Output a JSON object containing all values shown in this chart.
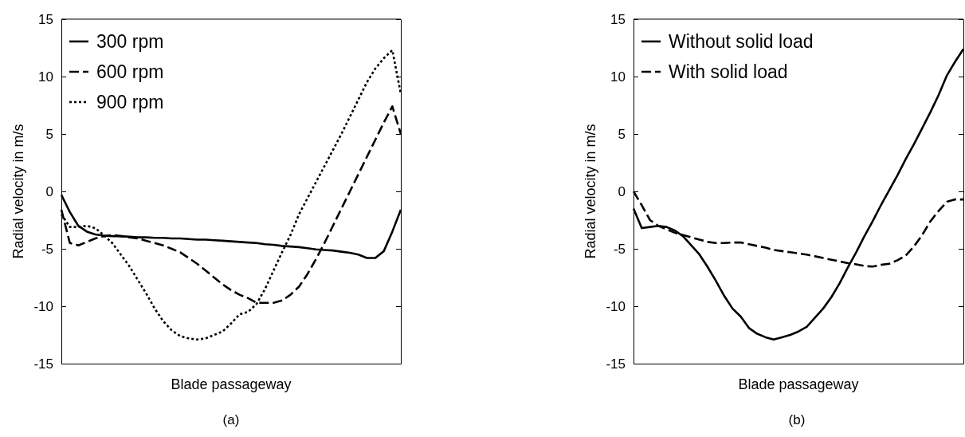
{
  "chart_data": [
    {
      "type": "line",
      "xlabel": "Blade passageway",
      "ylabel": "Radial velocity in m/s",
      "ylim": [
        -15,
        15
      ],
      "yticks": [
        -15,
        -10,
        -5,
        0,
        5,
        10,
        15
      ],
      "tick_labels": "y",
      "grid": false,
      "legend": "top left",
      "annotations": [
        "(a)"
      ],
      "categories": [
        null,
        null,
        null,
        null,
        null,
        null,
        null,
        null,
        null,
        null,
        null,
        null,
        null,
        null,
        null,
        null,
        null,
        null,
        null,
        null,
        null,
        null,
        null,
        null,
        null,
        null,
        null,
        null,
        null,
        null,
        null,
        null,
        null,
        null,
        null,
        null,
        null,
        null,
        null,
        null,
        null
      ],
      "series": [
        {
          "name": "300 rpm",
          "color": "#000000",
          "line_style": "solid",
          "values": [
            -0.3,
            -1.8,
            -3.0,
            -3.5,
            -3.75,
            -3.85,
            -3.9,
            -3.9,
            -3.95,
            -4.0,
            -4.0,
            -4.05,
            -4.05,
            -4.1,
            -4.1,
            -4.15,
            -4.2,
            -4.2,
            -4.25,
            -4.3,
            -4.35,
            -4.4,
            -4.45,
            -4.5,
            -4.6,
            -4.65,
            -4.75,
            -4.8,
            -4.85,
            -4.95,
            -5.05,
            -5.1,
            -5.15,
            -5.25,
            -5.35,
            -5.5,
            -5.8,
            -5.8,
            -5.2,
            -3.5,
            -1.6
          ]
        },
        {
          "name": "600 rpm",
          "color": "#000000",
          "line_style": "dashed",
          "values": [
            -1.6,
            -4.5,
            -4.7,
            -4.4,
            -4.1,
            -3.9,
            -3.8,
            -3.9,
            -4.0,
            -4.1,
            -4.3,
            -4.5,
            -4.7,
            -5.0,
            -5.3,
            -5.8,
            -6.3,
            -6.9,
            -7.5,
            -8.1,
            -8.6,
            -9.0,
            -9.3,
            -9.7,
            -9.7,
            -9.7,
            -9.5,
            -9.0,
            -8.3,
            -7.2,
            -5.9,
            -4.5,
            -3.0,
            -1.5,
            0,
            1.5,
            3.0,
            4.5,
            6.0,
            7.4,
            5.0
          ]
        },
        {
          "name": "900 rpm",
          "color": "#000000",
          "line_style": "dotted",
          "values": [
            -2.0,
            -3.1,
            -3.1,
            -3.0,
            -3.2,
            -3.8,
            -4.5,
            -5.5,
            -6.5,
            -7.7,
            -8.9,
            -10.2,
            -11.3,
            -12.1,
            -12.6,
            -12.8,
            -12.9,
            -12.8,
            -12.5,
            -12.2,
            -11.5,
            -10.7,
            -10.5,
            -9.8,
            -8.5,
            -6.9,
            -5.3,
            -3.8,
            -2.0,
            -0.6,
            0.8,
            2.2,
            3.6,
            5.0,
            6.5,
            8.0,
            9.5,
            10.7,
            11.6,
            12.3,
            8.5
          ]
        }
      ]
    },
    {
      "type": "line",
      "xlabel": "Blade passageway",
      "ylabel": "Radial velocity in m/s",
      "ylim": [
        -15,
        15
      ],
      "yticks": [
        -15,
        -10,
        -5,
        0,
        5,
        10,
        15
      ],
      "tick_labels": "y",
      "grid": false,
      "legend": "top left",
      "annotations": [
        "(b)"
      ],
      "categories": [
        null,
        null,
        null,
        null,
        null,
        null,
        null,
        null,
        null,
        null,
        null,
        null,
        null,
        null,
        null,
        null,
        null,
        null,
        null,
        null,
        null,
        null,
        null,
        null,
        null,
        null,
        null,
        null,
        null,
        null,
        null,
        null,
        null,
        null,
        null,
        null,
        null,
        null,
        null,
        null,
        null
      ],
      "series": [
        {
          "name": "Without solid load",
          "color": "#000000",
          "line_style": "solid",
          "values": [
            -1.5,
            -3.2,
            -3.1,
            -3.0,
            -3.1,
            -3.4,
            -3.9,
            -4.7,
            -5.5,
            -6.6,
            -7.8,
            -9.1,
            -10.2,
            -10.9,
            -11.9,
            -12.4,
            -12.7,
            -12.9,
            -12.7,
            -12.5,
            -12.2,
            -11.8,
            -11.0,
            -10.2,
            -9.2,
            -8.0,
            -6.6,
            -5.3,
            -3.9,
            -2.6,
            -1.2,
            0.1,
            1.4,
            2.8,
            4.1,
            5.5,
            6.9,
            8.4,
            10.1,
            11.3,
            12.4
          ]
        },
        {
          "name": "With solid load",
          "color": "#000000",
          "line_style": "dashed",
          "values": [
            0,
            -1.2,
            -2.5,
            -3.0,
            -3.3,
            -3.6,
            -3.8,
            -4.0,
            -4.2,
            -4.4,
            -4.5,
            -4.5,
            -4.45,
            -4.45,
            -4.6,
            -4.75,
            -4.9,
            -5.1,
            -5.2,
            -5.3,
            -5.4,
            -5.5,
            -5.65,
            -5.8,
            -5.95,
            -6.1,
            -6.25,
            -6.35,
            -6.5,
            -6.55,
            -6.4,
            -6.3,
            -6.0,
            -5.6,
            -4.8,
            -3.8,
            -2.6,
            -1.7,
            -0.9,
            -0.7,
            -0.7
          ]
        }
      ]
    }
  ]
}
